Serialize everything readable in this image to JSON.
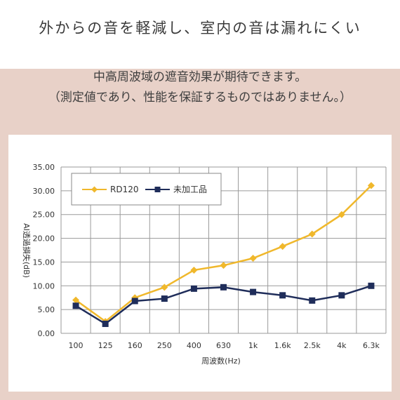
{
  "header": {
    "title": "外からの音を軽減し、室内の音は漏れにくい"
  },
  "description": {
    "line1": "中高周波域の遮音効果が期待できます。",
    "line2": "（測定値であり、性能を保証するものではありません。）"
  },
  "chart_data": {
    "type": "line",
    "categories": [
      "100",
      "125",
      "160",
      "250",
      "400",
      "630",
      "1k",
      "1.6k",
      "2.5k",
      "4k",
      "6.3k"
    ],
    "series": [
      {
        "name": "RD120",
        "values": [
          7.0,
          2.5,
          7.5,
          9.7,
          13.3,
          14.3,
          15.8,
          18.3,
          20.9,
          25.0,
          31.1
        ],
        "color": "#f0b82c",
        "marker": "diamond"
      },
      {
        "name": "未加工品",
        "values": [
          5.8,
          2.0,
          6.8,
          7.3,
          9.4,
          9.7,
          8.7,
          8.0,
          6.9,
          8.0,
          10.0
        ],
        "color": "#1f2d5a",
        "marker": "square"
      }
    ],
    "xlabel": "周波数(Hz)",
    "ylabel": "AI透過損失(dB)",
    "ylim": [
      0,
      35
    ],
    "yticks": [
      "0.00",
      "5.00",
      "10.00",
      "15.00",
      "20.00",
      "25.00",
      "30.00",
      "35.00"
    ],
    "grid": true,
    "legend_position": "top-left"
  }
}
